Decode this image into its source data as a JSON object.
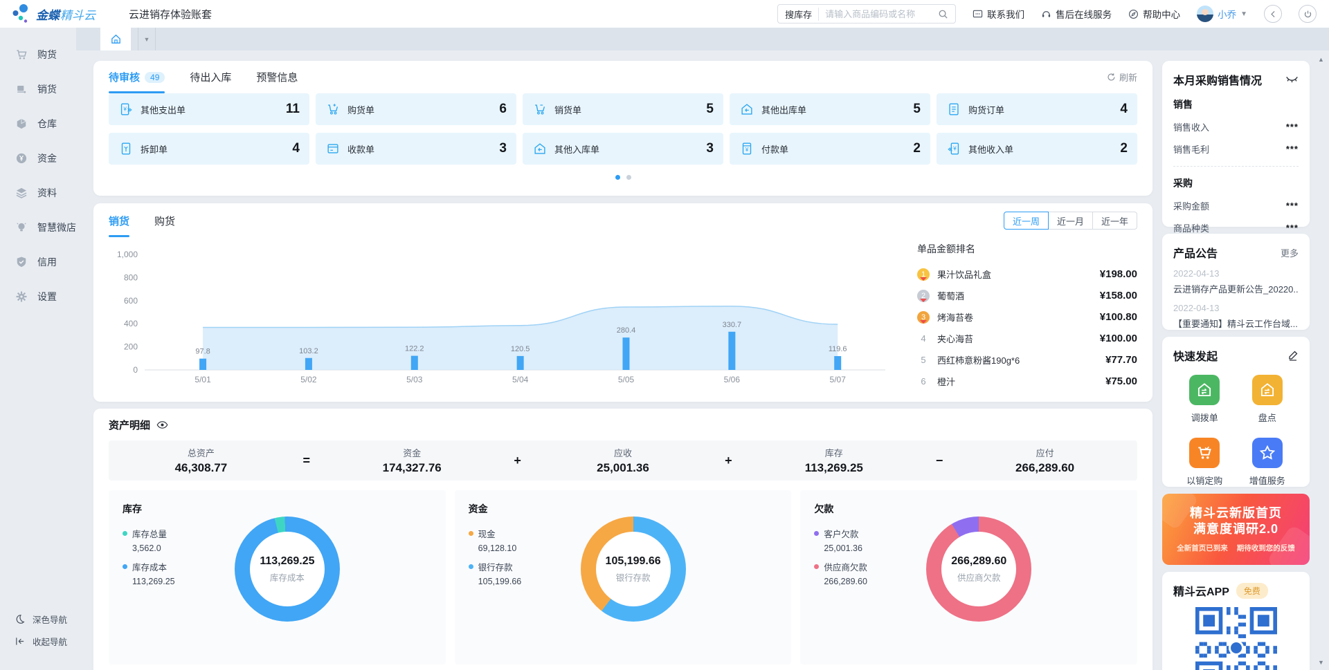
{
  "colors": {
    "accent": "#2d9cf4",
    "mini_card_bg": "#e8f5fd",
    "icon_blue": "#2ba7f0"
  },
  "header": {
    "logo_primary": "金蝶",
    "logo_secondary": "精斗云",
    "account_title": "云进销存体验账套",
    "search": {
      "prefix": "搜库存",
      "placeholder": "请输入商品编码或名称",
      "icon": "search-icon"
    },
    "links": {
      "contact": "联系我们",
      "after_sales": "售后在线服务",
      "help": "帮助中心"
    },
    "user": {
      "name": "小乔"
    }
  },
  "sidebar": {
    "items": [
      {
        "label": "购货",
        "icon": "cart-icon"
      },
      {
        "label": "销货",
        "icon": "sales-truck-icon"
      },
      {
        "label": "仓库",
        "icon": "warehouse-cube-icon"
      },
      {
        "label": "资金",
        "icon": "yuan-circle-icon"
      },
      {
        "label": "资料",
        "icon": "layers-icon"
      },
      {
        "label": "智慧微店",
        "icon": "bulb-icon"
      },
      {
        "label": "信用",
        "icon": "shield-check-icon"
      },
      {
        "label": "设置",
        "icon": "gear-icon"
      }
    ],
    "footer": {
      "dark_nav": "深色导航",
      "collapse_nav": "收起导航"
    }
  },
  "todo_panel": {
    "tabs": [
      {
        "label": "待审核",
        "badge": "49"
      },
      {
        "label": "待出入库"
      },
      {
        "label": "预警信息"
      }
    ],
    "refresh": "刷新",
    "rows": [
      [
        {
          "label": "其他支出单",
          "count": "11",
          "icon": "money-out-icon"
        },
        {
          "label": "购货单",
          "count": "6",
          "icon": "cart-plus-icon"
        },
        {
          "label": "销货单",
          "count": "5",
          "icon": "cart-minus-icon"
        },
        {
          "label": "其他出库单",
          "count": "5",
          "icon": "house-out-icon"
        },
        {
          "label": "购货订单",
          "count": "4",
          "icon": "order-doc-icon"
        }
      ],
      [
        {
          "label": "拆卸单",
          "count": "4",
          "icon": "disassembly-doc-icon"
        },
        {
          "label": "收款单",
          "count": "3",
          "icon": "receipt-card-icon"
        },
        {
          "label": "其他入库单",
          "count": "3",
          "icon": "house-in-icon"
        },
        {
          "label": "付款单",
          "count": "2",
          "icon": "payment-doc-icon"
        },
        {
          "label": "其他收入单",
          "count": "2",
          "icon": "money-in-icon"
        }
      ]
    ]
  },
  "trend_panel": {
    "tabs": [
      {
        "label": "销货"
      },
      {
        "label": "购货"
      }
    ],
    "range_buttons": [
      "近一周",
      "近一月",
      "近一年"
    ],
    "ranking": {
      "title": "单品金额排名",
      "items": [
        {
          "rank": "1",
          "name": "果汁饮品礼盒",
          "amount": "¥198.00",
          "medal_color": "#f7c341"
        },
        {
          "rank": "2",
          "name": "葡萄酒",
          "amount": "¥158.00",
          "medal_color": "#c6cbd4"
        },
        {
          "rank": "3",
          "name": "烤海苔卷",
          "amount": "¥100.80",
          "medal_color": "#f2a43d"
        },
        {
          "rank": "4",
          "name": "夹心海苔",
          "amount": "¥100.00"
        },
        {
          "rank": "5",
          "name": "西红柿意粉酱190g*6",
          "amount": "¥77.70"
        },
        {
          "rank": "6",
          "name": "橙汁",
          "amount": "¥75.00"
        }
      ]
    }
  },
  "chart_data": {
    "type": "bar",
    "categories": [
      "5/01",
      "5/02",
      "5/03",
      "5/04",
      "5/05",
      "5/06",
      "5/07"
    ],
    "series": [
      {
        "name": "销货金额柱状",
        "type": "bar",
        "values": [
          97.8,
          103.2,
          122.2,
          120.5,
          280.4,
          330.7,
          119.6
        ]
      },
      {
        "name": "销货趋势面积(估算)",
        "type": "area",
        "values": [
          368,
          368,
          370,
          385,
          545,
          552,
          395
        ]
      }
    ],
    "ylim": [
      0,
      1000
    ],
    "ytick_step": 200,
    "grid": false,
    "legend_position": "none",
    "bar_color": "#41a6f5",
    "area_color": "#d3e9fa",
    "area_line_color": "#9fd2f6"
  },
  "assets_panel": {
    "title": "资产明细",
    "equation": {
      "total": {
        "label": "总资产",
        "value": "46,308.77"
      },
      "operators": [
        "=",
        "+",
        "+",
        "−"
      ],
      "terms": [
        {
          "label": "资金",
          "value": "174,327.76"
        },
        {
          "label": "应收",
          "value": "25,001.36"
        },
        {
          "label": "库存",
          "value": "113,269.25"
        },
        {
          "label": "应付",
          "value": "266,289.60"
        }
      ]
    },
    "donuts": [
      {
        "title": "库存",
        "legend": [
          {
            "label": "库存总量",
            "value": "3,562.0",
            "color": "#3ed6c3"
          },
          {
            "label": "库存成本",
            "value": "113,269.25",
            "color": "#41a6f5"
          }
        ],
        "center_value": "113,269.25",
        "center_label": "库存成本",
        "start_deg": -14,
        "slices": [
          {
            "color": "#3ed6c3",
            "pct": 3.1
          },
          {
            "color": "#41a6f5",
            "pct": 96.9
          }
        ]
      },
      {
        "title": "资金",
        "legend": [
          {
            "label": "现金",
            "value": "69,128.10",
            "color": "#f6a844"
          },
          {
            "label": "银行存款",
            "value": "105,199.66",
            "color": "#4db3f7"
          }
        ],
        "center_value": "105,199.66",
        "center_label": "银行存款",
        "start_deg": 0,
        "slices": [
          {
            "color": "#4db3f7",
            "pct": 60.3
          },
          {
            "color": "#f6a844",
            "pct": 39.7
          }
        ]
      },
      {
        "title": "欠款",
        "legend": [
          {
            "label": "客户欠款",
            "value": "25,001.36",
            "color": "#8f6ff0"
          },
          {
            "label": "供应商欠款",
            "value": "266,289.60",
            "color": "#ee7186"
          }
        ],
        "center_value": "266,289.60",
        "center_label": "供应商欠款",
        "start_deg": 0,
        "slices": [
          {
            "color": "#ee7186",
            "pct": 91.4
          },
          {
            "color": "#8f6ff0",
            "pct": 8.6
          }
        ]
      }
    ]
  },
  "right_column": {
    "monthly": {
      "title": "本月采购销售情况",
      "visibility_icon": "eye-closed-icon",
      "sections": [
        {
          "title": "销售",
          "rows": [
            {
              "label": "销售收入",
              "value": "***"
            },
            {
              "label": "销售毛利",
              "value": "***"
            }
          ]
        },
        {
          "title": "采购",
          "rows": [
            {
              "label": "采购金额",
              "value": "***"
            },
            {
              "label": "商品种类",
              "value": "***"
            }
          ]
        }
      ]
    },
    "announcements": {
      "title": "产品公告",
      "more": "更多",
      "items": [
        {
          "date": "2022-04-13",
          "text": "云进销存产品更新公告_20220..."
        },
        {
          "date": "2022-04-13",
          "text": "【重要通知】精斗云工作台域..."
        }
      ]
    },
    "quick_start": {
      "title": "快速发起",
      "edit_icon": "pencil-icon",
      "items": [
        {
          "label": "调拨单",
          "color": "#4cb763",
          "icon": "house-transfer-icon"
        },
        {
          "label": "盘点",
          "color": "#f2b233",
          "icon": "house-check-icon"
        },
        {
          "label": "以销定购",
          "color": "#f78526",
          "icon": "cart-white-icon"
        },
        {
          "label": "增值服务",
          "color": "#4a7bf6",
          "icon": "star-icon"
        }
      ]
    },
    "banner": {
      "line1": "精斗云新版首页",
      "line2": "满意度调研2.0",
      "sub1": "全新首页已到来",
      "sub2": "期待收到您的反馈"
    },
    "app": {
      "title": "精斗云APP",
      "badge": "免费",
      "qr_color": "#2e6fd0"
    }
  }
}
